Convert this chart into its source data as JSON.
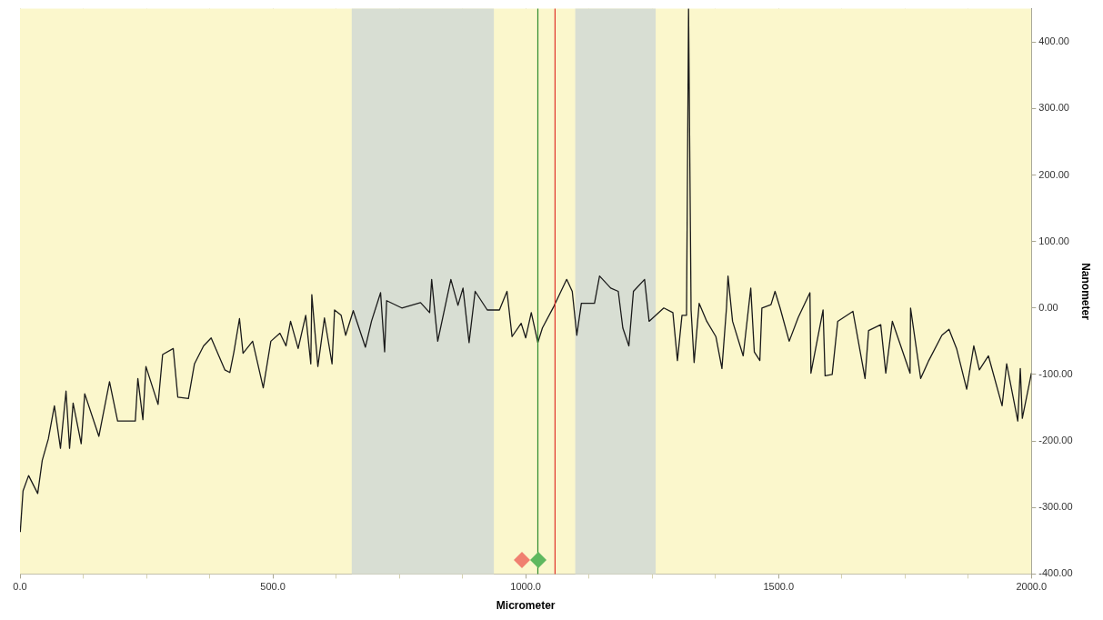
{
  "chart_data": {
    "type": "line",
    "xlabel": "Micrometer",
    "ylabel": "Nanometer",
    "xlim": [
      0,
      2000
    ],
    "ylim": [
      -400,
      450
    ],
    "xticks": [
      {
        "value": 0,
        "label": "0.0"
      },
      {
        "value": 125,
        "label": null
      },
      {
        "value": 250,
        "label": null
      },
      {
        "value": 375,
        "label": null
      },
      {
        "value": 500,
        "label": "500.0"
      },
      {
        "value": 625,
        "label": null
      },
      {
        "value": 750,
        "label": null
      },
      {
        "value": 875,
        "label": null
      },
      {
        "value": 1000,
        "label": "1000.0"
      },
      {
        "value": 1125,
        "label": null
      },
      {
        "value": 1250,
        "label": null
      },
      {
        "value": 1375,
        "label": null
      },
      {
        "value": 1500,
        "label": "1500.0"
      },
      {
        "value": 1625,
        "label": null
      },
      {
        "value": 1750,
        "label": null
      },
      {
        "value": 1875,
        "label": null
      },
      {
        "value": 2000,
        "label": "2000.0"
      }
    ],
    "yticks": [
      {
        "value": -400,
        "label": "-400.00"
      },
      {
        "value": -300,
        "label": "-300.00"
      },
      {
        "value": -200,
        "label": "-200.00"
      },
      {
        "value": -100,
        "label": "-100.00"
      },
      {
        "value": 0,
        "label": "0.00"
      },
      {
        "value": 100,
        "label": "100.00"
      },
      {
        "value": 200,
        "label": "200.00"
      },
      {
        "value": 300,
        "label": "300.00"
      },
      {
        "value": 400,
        "label": "400.00"
      }
    ],
    "grid": true,
    "legend": false,
    "marker": "none",
    "line_style": "solid",
    "bands": [
      {
        "axis": "x",
        "from": 656,
        "to": 937,
        "color": "#d8ded3"
      },
      {
        "axis": "x",
        "from": 1098,
        "to": 1257,
        "color": "#d8ded3"
      }
    ],
    "ref_lines": [
      {
        "axis": "x",
        "value": 1024,
        "color": "#2e8b2e"
      },
      {
        "axis": "x",
        "value": 1058,
        "color": "#e0332a"
      }
    ],
    "series": [
      {
        "color": "#1a1a1a",
        "x": [
          0.5,
          6,
          17,
          35,
          44,
          56,
          68,
          80,
          91,
          98,
          105,
          121,
          128,
          156,
          177,
          193,
          228,
          233,
          243,
          249,
          273,
          282,
          303,
          312,
          333,
          345,
          363,
          378,
          405,
          415,
          423,
          434,
          441,
          460,
          481,
          496,
          514,
          526,
          535,
          550,
          565,
          575,
          577,
          589,
          602,
          617,
          622,
          635,
          644,
          659,
          683,
          695,
          713,
          721,
          725,
          755,
          792,
          810,
          814,
          826,
          852,
          866,
          876,
          888,
          900,
          924,
          948,
          963,
          973,
          991,
          1000,
          1011,
          1024,
          1033,
          1056,
          1081,
          1092,
          1101,
          1110,
          1136,
          1146,
          1168,
          1183,
          1192,
          1204,
          1213,
          1235,
          1244,
          1273,
          1291,
          1300,
          1309,
          1318,
          1322,
          1327,
          1333,
          1343,
          1358,
          1376,
          1388,
          1397,
          1400,
          1409,
          1430,
          1445,
          1452,
          1463,
          1467,
          1485,
          1493,
          1503,
          1521,
          1539,
          1562,
          1564,
          1588,
          1592,
          1606,
          1617,
          1647,
          1671,
          1678,
          1702,
          1712,
          1725,
          1760,
          1761,
          1781,
          1797,
          1823,
          1837,
          1852,
          1872,
          1886,
          1897,
          1915,
          1942,
          1951,
          1973,
          1978,
          1982,
          2000
        ],
        "values": [
          -337,
          -275,
          -252,
          -279,
          -229,
          -197,
          -147,
          -211,
          -125,
          -211,
          -143,
          -204,
          -129,
          -193,
          -111,
          -170,
          -170,
          -106,
          -168,
          -88,
          -145,
          -70,
          -61,
          -134,
          -136,
          -84,
          -57,
          -45,
          -93,
          -97,
          -66,
          -16,
          -68,
          -50,
          -120,
          -50,
          -38,
          -57,
          -20,
          -61,
          -11,
          -84,
          20,
          -88,
          -15,
          -84,
          -3,
          -11,
          -41,
          -4,
          -59,
          -20,
          23,
          -66,
          11,
          0,
          8,
          -7,
          43,
          -50,
          43,
          4,
          30,
          -52,
          25,
          -3,
          -3,
          25,
          -43,
          -23,
          -45,
          -7,
          -52,
          -30,
          3,
          43,
          25,
          -41,
          7,
          7,
          48,
          30,
          25,
          -30,
          -57,
          25,
          43,
          -20,
          0,
          -7,
          -79,
          -11,
          -11,
          450,
          -3,
          -82,
          7,
          -20,
          -43,
          -91,
          0,
          48,
          -20,
          -72,
          30,
          -66,
          -79,
          0,
          5,
          25,
          0,
          -50,
          -14,
          23,
          -98,
          -3,
          -102,
          -100,
          -20,
          -5,
          -106,
          -34,
          -25,
          -98,
          -20,
          -98,
          0,
          -106,
          -79,
          -41,
          -32,
          -61,
          -122,
          -57,
          -93,
          -72,
          -147,
          -84,
          -170,
          -91,
          -166,
          -98
        ]
      }
    ]
  }
}
